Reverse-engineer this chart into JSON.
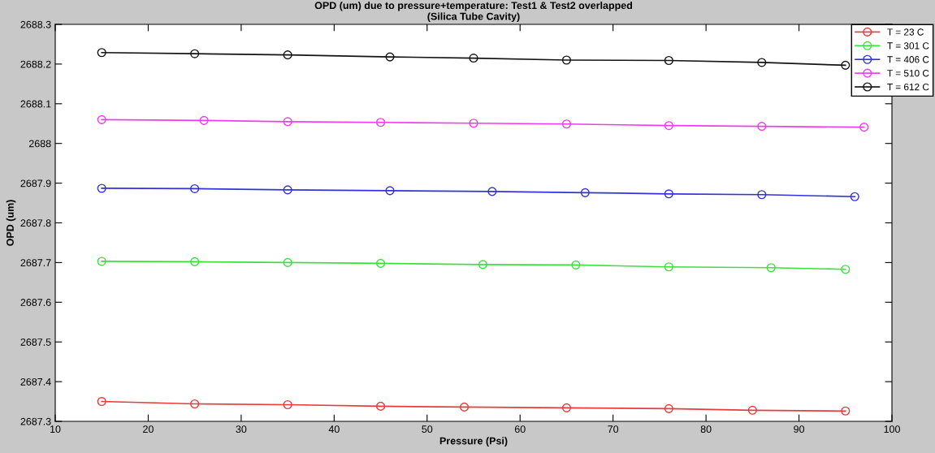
{
  "chart_data": {
    "type": "line",
    "title": "OPD (um) due to pressure+temperature: Test1 & Test2 overlapped\n(Silica Tube Cavity)",
    "xlabel": "Pressure (Psi)",
    "ylabel": "OPD (um)",
    "xlim": [
      10,
      100
    ],
    "xticks": [
      10,
      20,
      30,
      40,
      50,
      60,
      70,
      80,
      90,
      100
    ],
    "ylim": [
      2687.3,
      2688.3
    ],
    "yticks": [
      2687.3,
      2687.4,
      2687.5,
      2687.6,
      2687.7,
      2687.8,
      2687.9,
      {
        "value": 2688,
        "label": "2688"
      },
      2688.1,
      2688.2,
      2688.3
    ],
    "marker": "circle",
    "line_style": "solid",
    "legend": "top right",
    "grid": false,
    "series": [
      {
        "name": "T = 23 C",
        "color": "#e83c3c",
        "x": [
          15,
          25,
          35,
          45,
          54,
          65,
          76,
          85,
          95
        ],
        "values": [
          2687.35,
          2687.344,
          2687.342,
          2687.338,
          2687.336,
          2687.334,
          2687.332,
          2687.328,
          2687.326
        ]
      },
      {
        "name": "T = 301 C",
        "color": "#3ee03e",
        "x": [
          15,
          25,
          35,
          45,
          56,
          66,
          76,
          87,
          95
        ],
        "values": [
          2687.703,
          2687.702,
          2687.7,
          2687.698,
          2687.695,
          2687.694,
          2687.689,
          2687.687,
          2687.683
        ]
      },
      {
        "name": "T = 406 C",
        "color": "#3232dc",
        "x": [
          15,
          25,
          35,
          46,
          57,
          67,
          76,
          86,
          96
        ],
        "values": [
          2687.887,
          2687.886,
          2687.883,
          2687.881,
          2687.879,
          2687.876,
          2687.873,
          2687.871,
          2687.866
        ]
      },
      {
        "name": "T = 510 C",
        "color": "#f03cf0",
        "x": [
          15,
          26,
          35,
          45,
          55,
          65,
          76,
          86,
          97
        ],
        "values": [
          2688.06,
          2688.058,
          2688.055,
          2688.053,
          2688.051,
          2688.049,
          2688.045,
          2688.043,
          2688.041
        ]
      },
      {
        "name": "T = 612 C",
        "color": "#141414",
        "x": [
          15,
          25,
          35,
          46,
          55,
          65,
          76,
          86,
          95
        ],
        "values": [
          2688.229,
          2688.226,
          2688.223,
          2688.218,
          2688.215,
          2688.21,
          2688.209,
          2688.204,
          2688.197
        ]
      }
    ]
  }
}
